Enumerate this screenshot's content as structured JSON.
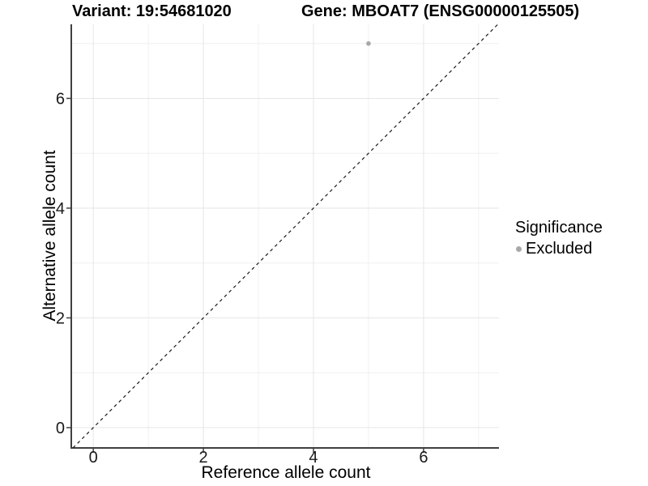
{
  "chart_data": {
    "type": "scatter",
    "title_left": "Variant: 19:54681020",
    "title_right": "Gene: MBOAT7 (ENSG00000125505)",
    "xlabel": "Reference allele count",
    "ylabel": "Alternative allele count",
    "xlim": [
      -0.4,
      7.37
    ],
    "ylim": [
      -0.37,
      7.35
    ],
    "x_ticks": [
      0,
      2,
      4,
      6
    ],
    "y_ticks": [
      0,
      2,
      4,
      6
    ],
    "x_minor_gridlines": [
      1,
      3,
      5,
      7
    ],
    "y_minor_gridlines": [
      1,
      3,
      5,
      7
    ],
    "grid": "major and minor, light gray on white",
    "series": [
      {
        "name": "Excluded",
        "color": "#a8a8a8",
        "points": [
          {
            "x": 5,
            "y": 7
          }
        ]
      }
    ],
    "identity_line": {
      "slope": 1,
      "intercept": 0,
      "style": "dashed",
      "color": "#1a1a1a"
    },
    "legend": {
      "position": "right",
      "title": "Significance",
      "items": [
        {
          "label": "Excluded",
          "color": "#a8a8a8"
        }
      ]
    },
    "colors": {
      "background": "#ffffff",
      "major_grid": "#e6e6e6",
      "minor_grid": "#f0f0f0",
      "axis_line": "#404040",
      "tick_text": "#1a1a1a"
    }
  }
}
